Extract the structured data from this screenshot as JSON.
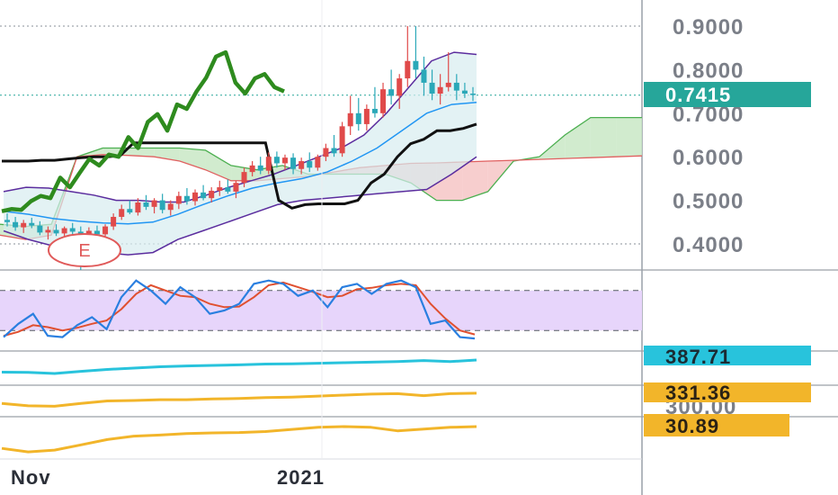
{
  "colors": {
    "up": "#e04a4a",
    "down": "#2aa8b8",
    "conversion_line": "#2e8b1e",
    "lagging_line": "#111111",
    "bollinger": "#5b2d9e",
    "bollinger_fill": "#d7ecef",
    "kumo_bull": "#c9e7c5",
    "kumo_bear": "#f6c6c6",
    "stoch_k": "#2a7fe0",
    "stoch_d": "#e05030",
    "stoch_band": "#e7d5fb",
    "panel_cyan": "#28c3dc",
    "panel_orange": "#f2b52a",
    "price_badge": "#26a69a",
    "earnings_marker": "#e05a5a"
  },
  "chart_data": {
    "type": "candlestick",
    "price_axis": {
      "ticks": [
        "0.9000",
        "0.8000",
        "0.7000",
        "0.6000",
        "0.5000",
        "0.4000"
      ],
      "tick_values": [
        0.9,
        0.8,
        0.7,
        0.6,
        0.5,
        0.4
      ],
      "range": [
        0.34,
        0.96
      ]
    },
    "last_price_label": "0.7415",
    "last_price": 0.7415,
    "time_axis": {
      "labels": [
        "Nov",
        "2021"
      ]
    },
    "earnings_marker_label": "E",
    "candles": [
      [
        0.455,
        0.47,
        0.44,
        0.45
      ],
      [
        0.45,
        0.462,
        0.43,
        0.438
      ],
      [
        0.438,
        0.455,
        0.425,
        0.448
      ],
      [
        0.448,
        0.46,
        0.436,
        0.442
      ],
      [
        0.442,
        0.452,
        0.42,
        0.426
      ],
      [
        0.426,
        0.44,
        0.41,
        0.432
      ],
      [
        0.432,
        0.445,
        0.418,
        0.424
      ],
      [
        0.424,
        0.44,
        0.412,
        0.436
      ],
      [
        0.436,
        0.448,
        0.42,
        0.428
      ],
      [
        0.428,
        0.44,
        0.34,
        0.42
      ],
      [
        0.42,
        0.438,
        0.41,
        0.43
      ],
      [
        0.43,
        0.442,
        0.415,
        0.422
      ],
      [
        0.422,
        0.445,
        0.416,
        0.44
      ],
      [
        0.44,
        0.47,
        0.432,
        0.462
      ],
      [
        0.462,
        0.49,
        0.455,
        0.48
      ],
      [
        0.48,
        0.5,
        0.468,
        0.472
      ],
      [
        0.472,
        0.505,
        0.465,
        0.495
      ],
      [
        0.495,
        0.512,
        0.478,
        0.485
      ],
      [
        0.485,
        0.505,
        0.47,
        0.5
      ],
      [
        0.5,
        0.515,
        0.47,
        0.478
      ],
      [
        0.478,
        0.5,
        0.465,
        0.492
      ],
      [
        0.492,
        0.52,
        0.48,
        0.51
      ],
      [
        0.51,
        0.528,
        0.49,
        0.498
      ],
      [
        0.498,
        0.525,
        0.488,
        0.518
      ],
      [
        0.518,
        0.535,
        0.5,
        0.505
      ],
      [
        0.505,
        0.53,
        0.495,
        0.522
      ],
      [
        0.522,
        0.545,
        0.51,
        0.53
      ],
      [
        0.53,
        0.548,
        0.515,
        0.52
      ],
      [
        0.52,
        0.545,
        0.505,
        0.54
      ],
      [
        0.54,
        0.575,
        0.53,
        0.565
      ],
      [
        0.565,
        0.59,
        0.555,
        0.58
      ],
      [
        0.58,
        0.6,
        0.56,
        0.568
      ],
      [
        0.568,
        0.61,
        0.56,
        0.6
      ],
      [
        0.6,
        0.612,
        0.575,
        0.585
      ],
      [
        0.585,
        0.605,
        0.57,
        0.598
      ],
      [
        0.598,
        0.608,
        0.56,
        0.572
      ],
      [
        0.572,
        0.598,
        0.56,
        0.59
      ],
      [
        0.59,
        0.61,
        0.565,
        0.575
      ],
      [
        0.575,
        0.605,
        0.568,
        0.6
      ],
      [
        0.6,
        0.63,
        0.59,
        0.62
      ],
      [
        0.62,
        0.65,
        0.6,
        0.608
      ],
      [
        0.608,
        0.68,
        0.6,
        0.67
      ],
      [
        0.67,
        0.74,
        0.65,
        0.7
      ],
      [
        0.7,
        0.735,
        0.66,
        0.675
      ],
      [
        0.675,
        0.72,
        0.66,
        0.71
      ],
      [
        0.71,
        0.76,
        0.69,
        0.7
      ],
      [
        0.7,
        0.77,
        0.69,
        0.755
      ],
      [
        0.755,
        0.8,
        0.72,
        0.74
      ],
      [
        0.74,
        0.79,
        0.71,
        0.78
      ],
      [
        0.78,
        0.9,
        0.76,
        0.82
      ],
      [
        0.82,
        0.9,
        0.78,
        0.8
      ],
      [
        0.8,
        0.83,
        0.74,
        0.77
      ],
      [
        0.77,
        0.8,
        0.73,
        0.745
      ],
      [
        0.745,
        0.79,
        0.72,
        0.76
      ],
      [
        0.76,
        0.84,
        0.75,
        0.77
      ],
      [
        0.77,
        0.79,
        0.73,
        0.752
      ],
      [
        0.752,
        0.77,
        0.735,
        0.745
      ],
      [
        0.745,
        0.76,
        0.728,
        0.742
      ]
    ],
    "conversion_line": [
      0.475,
      0.48,
      0.478,
      0.498,
      0.51,
      0.505,
      0.552,
      0.53,
      0.563,
      0.595,
      0.58,
      0.605,
      0.6,
      0.645,
      0.62,
      0.68,
      0.698,
      0.66,
      0.72,
      0.71,
      0.75,
      0.782,
      0.83,
      0.84,
      0.77,
      0.745,
      0.78,
      0.79,
      0.76,
      0.75
    ],
    "lagging_line": [
      0.59,
      0.59,
      0.59,
      0.592,
      0.592,
      0.595,
      0.598,
      0.6,
      0.6,
      0.603,
      0.632,
      0.632,
      0.632,
      0.632,
      0.632,
      0.632,
      0.632,
      0.632,
      0.632,
      0.632,
      0.632,
      0.5,
      0.482,
      0.49,
      0.492,
      0.492,
      0.492,
      0.5,
      0.54,
      0.56,
      0.6,
      0.63,
      0.64,
      0.66,
      0.66,
      0.665,
      0.675
    ],
    "bollinger_upper": [
      0.52,
      0.53,
      0.528,
      0.52,
      0.512,
      0.5,
      0.5,
      0.496,
      0.496,
      0.512,
      0.53,
      0.545,
      0.56,
      0.58,
      0.6,
      0.62,
      0.65,
      0.7,
      0.76,
      0.82,
      0.84,
      0.835
    ],
    "bollinger_middle": [
      0.475,
      0.468,
      0.458,
      0.452,
      0.448,
      0.446,
      0.45,
      0.468,
      0.49,
      0.51,
      0.528,
      0.54,
      0.55,
      0.565,
      0.59,
      0.62,
      0.66,
      0.7,
      0.72,
      0.725
    ],
    "bollinger_lower": [
      0.43,
      0.41,
      0.395,
      0.385,
      0.38,
      0.375,
      0.38,
      0.41,
      0.43,
      0.45,
      0.47,
      0.49,
      0.5,
      0.505,
      0.51,
      0.515,
      0.52,
      0.525,
      0.56,
      0.6
    ],
    "cloud_span_a": [
      0.445,
      0.44,
      0.445,
      0.6,
      0.62,
      0.62,
      0.62,
      0.62,
      0.615,
      0.58,
      0.57,
      0.58,
      0.56,
      0.56,
      0.56,
      0.56,
      0.54,
      0.5,
      0.5,
      0.52,
      0.59,
      0.6,
      0.65,
      0.69,
      0.69,
      0.69
    ],
    "cloud_span_b": [
      0.42,
      0.41,
      0.42,
      0.6,
      0.605,
      0.603,
      0.6,
      0.59,
      0.57,
      0.545,
      0.545,
      0.55,
      0.555,
      0.565,
      0.575,
      0.58,
      0.585,
      0.586,
      0.588,
      0.59,
      0.592,
      0.594,
      0.596,
      0.598,
      0.6,
      0.602
    ],
    "stochastic": {
      "band": [
        20,
        80
      ],
      "k": [
        10,
        30,
        45,
        12,
        10,
        28,
        40,
        22,
        70,
        95,
        80,
        60,
        85,
        70,
        45,
        50,
        60,
        90,
        95,
        90,
        72,
        80,
        55,
        85,
        90,
        75,
        90,
        95,
        85,
        30,
        35,
        10,
        8
      ],
      "d": [
        12,
        18,
        28,
        25,
        20,
        24,
        30,
        35,
        52,
        75,
        88,
        80,
        72,
        70,
        60,
        55,
        56,
        70,
        88,
        92,
        85,
        78,
        70,
        72,
        82,
        84,
        88,
        90,
        88,
        60,
        38,
        20,
        14
      ]
    },
    "series": [
      {
        "label": "387.71",
        "values": [
          0.35,
          0.34,
          0.3,
          0.38,
          0.45,
          0.5,
          0.55,
          0.58,
          0.6,
          0.62,
          0.65,
          0.66,
          0.68,
          0.7,
          0.72,
          0.74,
          0.78,
          0.74,
          0.8
        ]
      },
      {
        "label": "300.00",
        "values": []
      },
      {
        "label": "331.36",
        "values": [
          0.4,
          0.3,
          0.28,
          0.4,
          0.5,
          0.52,
          0.55,
          0.55,
          0.58,
          0.6,
          0.64,
          0.66,
          0.7,
          0.74,
          0.78,
          0.8,
          0.72,
          0.8,
          0.82
        ]
      },
      {
        "label": "30.89",
        "values": [
          0.2,
          0.1,
          0.15,
          0.3,
          0.45,
          0.55,
          0.58,
          0.62,
          0.64,
          0.65,
          0.68,
          0.74,
          0.8,
          0.82,
          0.8,
          0.7,
          0.75,
          0.8,
          0.82
        ]
      }
    ]
  }
}
